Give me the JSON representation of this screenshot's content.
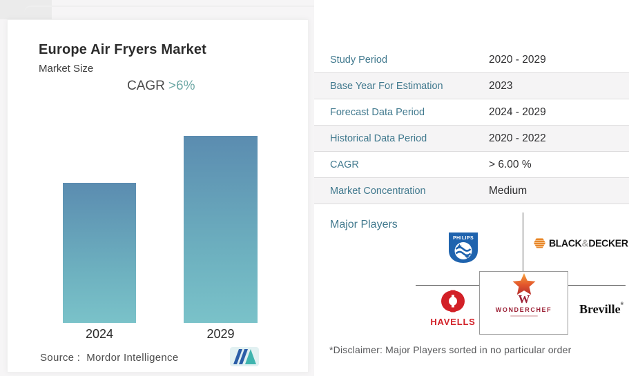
{
  "left_panel": {
    "title": "Europe Air Fryers Market",
    "subtitle": "Market Size",
    "cagr_label": "CAGR",
    "cagr_value": ">6%",
    "source": "Source :  Mordor Intelligence"
  },
  "chart_data": {
    "type": "bar",
    "title": "Europe Air Fryers Market",
    "subtitle": "Market Size",
    "categories": [
      "2024",
      "2029"
    ],
    "values": [
      75,
      100
    ],
    "values_note": "No numeric axis shown; values are relative bar heights indexed to 2029 = 100",
    "annotation": "CAGR >6%",
    "xlabel": "",
    "ylabel": "Market Size",
    "grid": false,
    "legend": false,
    "axes_shown": false,
    "bar_gradient_top": "#5b8cb0",
    "bar_gradient_bottom": "#7ac2c9",
    "source": "Source :  Mordor Intelligence"
  },
  "table": {
    "rows": [
      {
        "label": "Study Period",
        "value": "2020 - 2029"
      },
      {
        "label": "Base Year For Estimation",
        "value": "2023"
      },
      {
        "label": "Forecast Data Period",
        "value": "2024 - 2029"
      },
      {
        "label": "Historical Data Period",
        "value": "2020 - 2022"
      },
      {
        "label": "CAGR",
        "value": "> 6.00 %"
      },
      {
        "label": "Market Concentration",
        "value": "Medium"
      }
    ]
  },
  "major_players": {
    "heading": "Major Players",
    "players": [
      "Philips",
      "Black & Decker",
      "Havells",
      "Wonderchef",
      "Breville"
    ],
    "philips": "PHILIPS",
    "bd_black": "BLACK",
    "bd_amp": "&",
    "bd_decker": "DECKER",
    "havells": "HAVELLS",
    "wonderchef": "WONDERCHEF",
    "wonderchef_w": "W",
    "breville": "Breville",
    "breville_mark": "®",
    "disclaimer": "*Disclaimer: Major Players sorted in no particular order"
  },
  "colors": {
    "table_label_teal": "#41798e",
    "cagr_teal": "#6fa9a6",
    "bar_top": "#5b8cb0",
    "bar_bottom": "#7ac2c9",
    "philips_blue": "#1f63ae",
    "bd_orange": "#e8862a",
    "havells_red": "#d22027",
    "wonderchef_red": "#9c2136",
    "line_gray": "#5a5a5a"
  }
}
